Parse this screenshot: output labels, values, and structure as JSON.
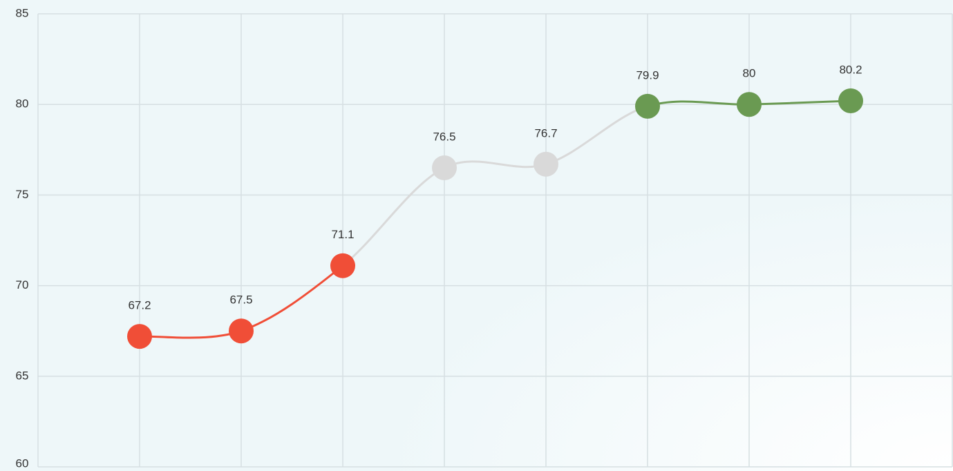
{
  "chart_data": {
    "type": "line",
    "categories": [
      null,
      null,
      null,
      null,
      null,
      null,
      null,
      null
    ],
    "values": [
      67.2,
      67.5,
      71.1,
      76.5,
      76.7,
      79.9,
      80,
      80.2
    ],
    "point_colors": [
      "#f04e37",
      "#f04e37",
      "#f04e37",
      "#d9d9d9",
      "#d9d9d9",
      "#6a9a52",
      "#6a9a52",
      "#6a9a52"
    ],
    "segment_colors": [
      "#f04e37",
      "#f04e37",
      "#d9d9d9",
      "#d9d9d9",
      "#d9d9d9",
      "#6a9a52",
      "#6a9a52"
    ],
    "ylim": [
      60,
      85
    ],
    "yticks": [
      60,
      65,
      70,
      75,
      80,
      85
    ],
    "grid": true
  }
}
